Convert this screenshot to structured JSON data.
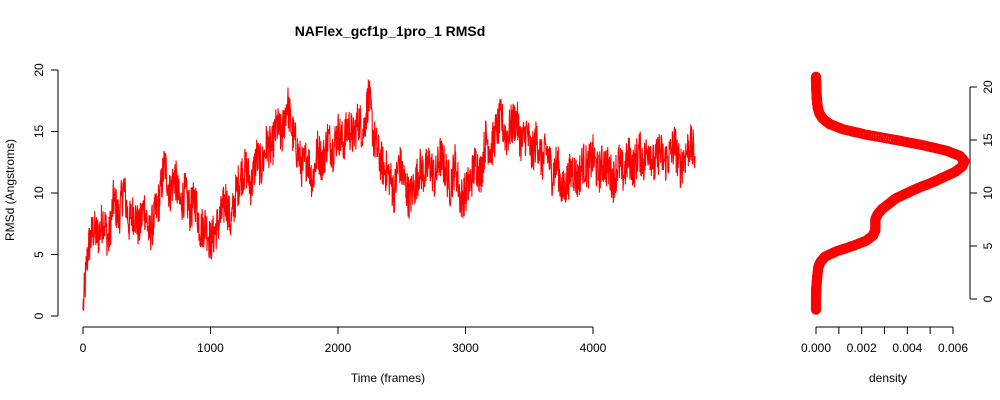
{
  "chart_data": [
    {
      "type": "line",
      "title": "NAFlex_gcf1p_1pro_1 RMSd",
      "xlabel": "Time (frames)",
      "ylabel": "RMSd (Angstroms)",
      "xlim": [
        0,
        4800
      ],
      "ylim": [
        0,
        20
      ],
      "xticks": [
        "0",
        "1000",
        "2000",
        "3000",
        "4000"
      ],
      "yticks": [
        "0",
        "5",
        "10",
        "15",
        "20"
      ],
      "series_color": "#ff0000",
      "grid": false,
      "series": [
        {
          "x": [
            0,
            40,
            80,
            120,
            160,
            200,
            240,
            280,
            320,
            360,
            400,
            440,
            480,
            520,
            560,
            600,
            640,
            680,
            720,
            760,
            800,
            840,
            880,
            920,
            960,
            1000,
            1040,
            1080,
            1120,
            1160,
            1200,
            1240,
            1280,
            1320,
            1360,
            1400,
            1440,
            1480,
            1520,
            1560,
            1600,
            1640,
            1680,
            1720,
            1760,
            1800,
            1840,
            1880,
            1920,
            1960,
            2000,
            2040,
            2080,
            2120,
            2160,
            2200,
            2240,
            2280,
            2320,
            2360,
            2400,
            2440,
            2480,
            2520,
            2560,
            2600,
            2640,
            2680,
            2720,
            2760,
            2800,
            2840,
            2880,
            2920,
            2960,
            3000,
            3040,
            3080,
            3120,
            3160,
            3200,
            3240,
            3280,
            3320,
            3360,
            3400,
            3440,
            3480,
            3520,
            3560,
            3600,
            3640,
            3680,
            3720,
            3760,
            3800,
            3840,
            3880,
            3920,
            3960,
            4000,
            4040,
            4080,
            4120,
            4160,
            4200,
            4240,
            4280,
            4320,
            4360,
            4400,
            4440,
            4480,
            4520,
            4560,
            4600,
            4640,
            4680,
            4720,
            4760,
            4800
          ],
          "y": [
            0.5,
            5.5,
            7.0,
            6.5,
            8.0,
            6.0,
            9.5,
            8.0,
            10.5,
            7.5,
            8.5,
            7.0,
            9.0,
            6.5,
            8.0,
            9.5,
            12.5,
            10.0,
            11.5,
            9.0,
            10.0,
            8.5,
            9.5,
            7.0,
            7.5,
            6.0,
            7.0,
            8.0,
            9.5,
            7.5,
            10.0,
            11.5,
            12.0,
            10.5,
            13.0,
            12.0,
            14.0,
            13.5,
            15.5,
            14.5,
            17.5,
            15.0,
            13.5,
            12.0,
            13.0,
            11.0,
            13.5,
            12.5,
            14.5,
            13.5,
            15.0,
            14.0,
            15.5,
            14.5,
            16.0,
            15.0,
            18.0,
            14.5,
            13.0,
            12.0,
            11.5,
            10.0,
            12.5,
            11.0,
            9.5,
            10.5,
            12.0,
            11.5,
            12.5,
            11.0,
            13.0,
            12.0,
            10.5,
            12.5,
            9.5,
            10.0,
            11.0,
            12.5,
            11.5,
            14.5,
            13.5,
            15.0,
            16.0,
            14.5,
            15.5,
            16.0,
            14.0,
            15.0,
            13.0,
            14.5,
            12.5,
            13.5,
            11.5,
            12.5,
            10.0,
            11.0,
            12.0,
            11.0,
            12.5,
            12.0,
            13.0,
            11.5,
            12.5,
            12.0,
            11.0,
            12.5,
            11.5,
            13.0,
            12.0,
            13.5,
            12.5,
            14.0,
            12.0,
            13.5,
            12.5,
            13.0,
            14.0,
            12.0,
            13.0,
            14.0,
            13.0
          ]
        }
      ]
    },
    {
      "type": "scatter",
      "xlabel": "density",
      "ylabel": "",
      "xlim": [
        0,
        0.006
      ],
      "ylim": [
        -1,
        21
      ],
      "xticks": [
        "0.000",
        "0.002",
        "0.004",
        "0.006"
      ],
      "yticks": [
        "0",
        "5",
        "10",
        "15",
        "20"
      ],
      "marker_color": "#ff0000",
      "density_curve": {
        "y": [
          -1,
          0,
          1,
          2,
          3,
          3.5,
          4,
          4.5,
          5,
          5.5,
          6,
          6.5,
          7,
          7.5,
          8,
          8.5,
          9,
          9.5,
          10,
          10.5,
          11,
          11.5,
          12,
          12.5,
          13,
          13.5,
          14,
          14.5,
          15,
          15.5,
          16,
          16.5,
          17,
          17.5,
          18,
          18.5,
          19,
          19.5,
          20,
          20.5,
          21
        ],
        "density": [
          0.0,
          0.0,
          1e-05,
          5e-05,
          0.0001,
          0.0002,
          0.0004,
          0.0009,
          0.0016,
          0.0022,
          0.0025,
          0.0026,
          0.0026,
          0.0026,
          0.0027,
          0.0029,
          0.0032,
          0.0035,
          0.004,
          0.0045,
          0.0051,
          0.0056,
          0.0061,
          0.0064,
          0.0065,
          0.0063,
          0.0057,
          0.0047,
          0.0035,
          0.0022,
          0.0012,
          0.0006,
          0.0003,
          0.00015,
          8e-05,
          5e-05,
          3e-05,
          2e-05,
          1e-05,
          0.0,
          0.0
        ]
      }
    }
  ]
}
